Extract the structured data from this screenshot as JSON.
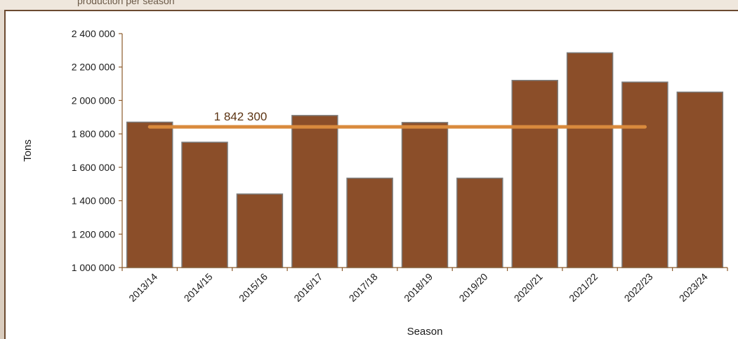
{
  "header": {
    "cut_text": "production per season"
  },
  "colors": {
    "bar_fill": "#8b4e29",
    "bar_stroke": "#7a7a7a",
    "average_line": "#d98a3d",
    "axis": "#8b5a2b"
  },
  "chart_data": {
    "type": "bar",
    "title": "",
    "xlabel": "Season",
    "ylabel": "Tons",
    "categories": [
      "2013/14",
      "2014/15",
      "2015/16",
      "2016/17",
      "2017/18",
      "2018/19",
      "2019/20",
      "2020/21",
      "2021/22",
      "2022/23",
      "2023/24"
    ],
    "series": [
      {
        "values": [
          1870000,
          1750000,
          1440000,
          1910000,
          1535000,
          1868000,
          1535000,
          2120000,
          2285000,
          2110000,
          2050000
        ]
      }
    ],
    "ylim": [
      1000000,
      2400000
    ],
    "yticks": [
      1000000,
      1200000,
      1400000,
      1600000,
      1800000,
      2000000,
      2200000,
      2400000
    ],
    "ytick_labels": [
      "1 000 000",
      "1 200 000",
      "1 400 000",
      "1 600 000",
      "1 800 000",
      "2 000 000",
      "2 200 000",
      "2 400 000"
    ],
    "average": {
      "value": 1842300,
      "label": "1 842 300",
      "from_category": "2013/14",
      "to_category": "2022/23"
    },
    "grid": false,
    "legend": "none"
  }
}
